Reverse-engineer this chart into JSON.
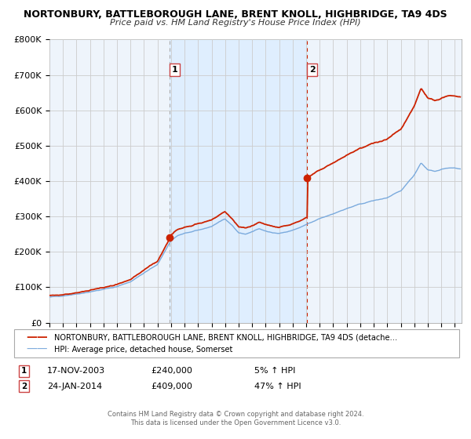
{
  "title1": "NORTONBURY, BATTLEBOROUGH LANE, BRENT KNOLL, HIGHBRIDGE, TA9 4DS",
  "title2": "Price paid vs. HM Land Registry's House Price Index (HPI)",
  "ylim": [
    0,
    800000
  ],
  "yticks": [
    0,
    100000,
    200000,
    300000,
    400000,
    500000,
    600000,
    700000,
    800000
  ],
  "ytick_labels": [
    "£0",
    "£100K",
    "£200K",
    "£300K",
    "£400K",
    "£500K",
    "£600K",
    "£700K",
    "£800K"
  ],
  "xlim_start": 1995.0,
  "xlim_end": 2025.5,
  "hpi_color": "#7aaadd",
  "price_color": "#cc2200",
  "sale1_year": 2003.88,
  "sale1_price": 240000,
  "sale1_label": "1",
  "sale1_date": "17-NOV-2003",
  "sale1_pct": "5%",
  "sale2_year": 2014.07,
  "sale2_price": 409000,
  "sale2_label": "2",
  "sale2_date": "24-JAN-2014",
  "sale2_pct": "47%",
  "bg_color": "#ffffff",
  "shade_color": "#ddeeff",
  "grid_color": "#cccccc",
  "legend_line1": "NORTONBURY, BATTLEBOROUGH LANE, BRENT KNOLL, HIGHBRIDGE, TA9 4DS (detache…",
  "legend_line2": "HPI: Average price, detached house, Somerset",
  "footer1": "Contains HM Land Registry data © Crown copyright and database right 2024.",
  "footer2": "This data is licensed under the Open Government Licence v3.0."
}
